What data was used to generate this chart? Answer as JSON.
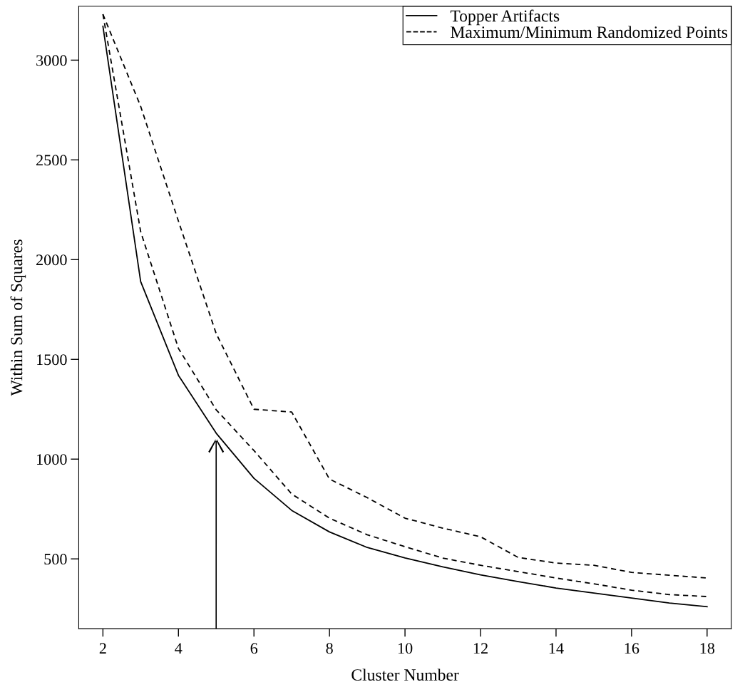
{
  "chart_data": {
    "type": "line",
    "xlabel": "Cluster Number",
    "ylabel": "Within Sum of Squares",
    "x": [
      2,
      3,
      4,
      5,
      6,
      7,
      8,
      9,
      10,
      11,
      12,
      13,
      14,
      15,
      16,
      17,
      18
    ],
    "series": [
      {
        "name": "Topper Artifacts",
        "color": "#000000",
        "line_style": "solid",
        "values": [
          3170,
          1890,
          1420,
          1130,
          904,
          743,
          635,
          557,
          505,
          460,
          420,
          386,
          354,
          329,
          304,
          279,
          260
        ]
      },
      {
        "name": "Maximum/Minimum Randomized Points",
        "color": "#000000",
        "line_style": "dashed",
        "values": [
          3230,
          2140,
          1555,
          1247,
          1043,
          825,
          704,
          621,
          561,
          504,
          468,
          436,
          404,
          375,
          343,
          321,
          311
        ]
      },
      {
        "color": "#000000",
        "line_style": "dashed",
        "values": [
          3230,
          2768,
          2193,
          1629,
          1250,
          1236,
          900,
          807,
          704,
          654,
          611,
          507,
          479,
          468,
          432,
          418,
          404
        ]
      }
    ],
    "xlim": [
      1.36,
      18.64
    ],
    "ylim": [
      150,
      3270
    ],
    "xticks": [
      2,
      4,
      6,
      8,
      10,
      12,
      14,
      16,
      18
    ],
    "yticks": [
      500,
      1000,
      1500,
      2000,
      2500,
      3000
    ],
    "grid": false,
    "legend": "top right",
    "marker": "none"
  }
}
